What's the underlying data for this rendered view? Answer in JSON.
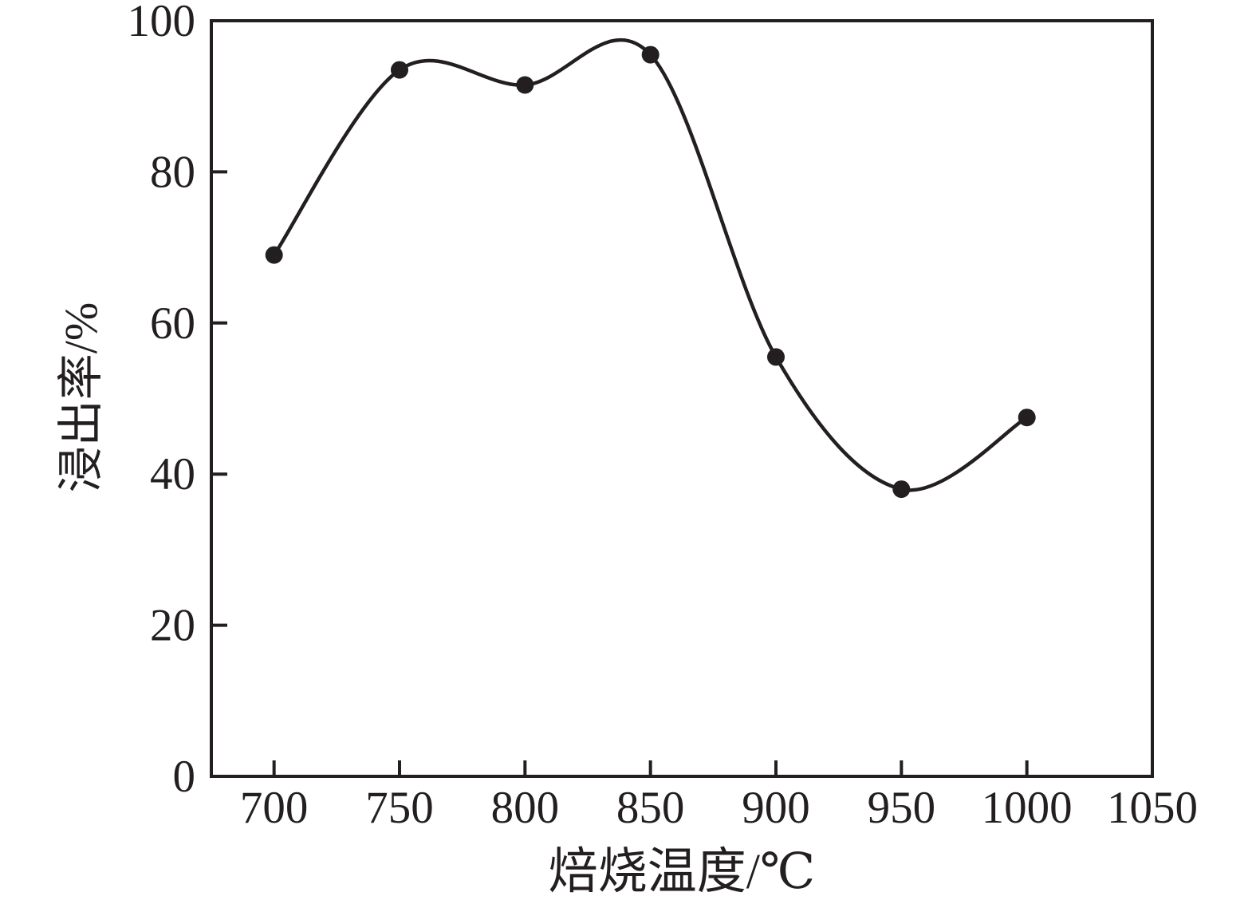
{
  "page": {
    "background_color": "#ffffff",
    "ink_color": "#231f20"
  },
  "chart_data": {
    "type": "line",
    "title": "",
    "xlabel": "焙烧温度/℃",
    "ylabel": "浸出率/%",
    "series": [
      {
        "name": "浸出率",
        "x": [
          700,
          750,
          800,
          850,
          900,
          950,
          1000
        ],
        "y": [
          69,
          93.5,
          91.5,
          95.5,
          55.5,
          38,
          47.5
        ]
      }
    ],
    "xlim": [
      675,
      1050
    ],
    "ylim": [
      0,
      100
    ],
    "x_ticks": [
      700,
      750,
      800,
      850,
      900,
      950,
      1000,
      1050
    ],
    "y_ticks": [
      0,
      20,
      40,
      60,
      80,
      100
    ],
    "grid": false,
    "legend": "none",
    "smooth": true,
    "line_color": "#231f20",
    "marker": "filled-circle",
    "marker_size_px": 11,
    "axis_color": "#231f20",
    "tick_direction": "in"
  }
}
